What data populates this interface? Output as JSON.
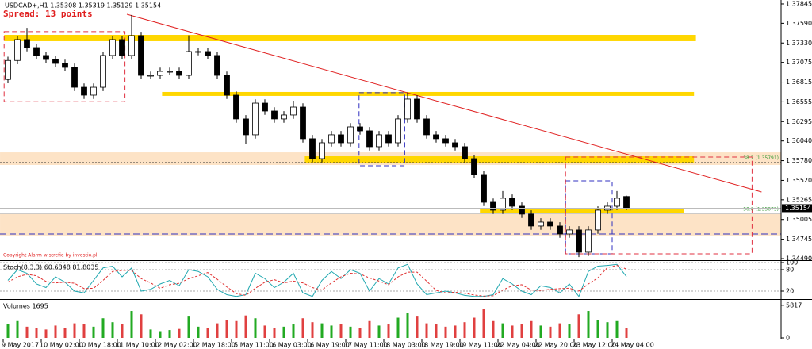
{
  "chart_data": [
    {
      "type": "candlestick",
      "title": "USDCAD+,H1  1.35308 1.35319 1.35129 1.35154",
      "spread": "Spread: 13 points",
      "footer": "Copyright Alarm w strefie by investio.pl",
      "categories": [
        "9 May 2017",
        null,
        null,
        null,
        "10 May 02:00",
        null,
        null,
        null,
        "10 May 18:00",
        null,
        null,
        null,
        "11 May 10:00",
        null,
        null,
        null,
        "12 May 02:00",
        null,
        null,
        null,
        "12 May 18:00",
        null,
        null,
        null,
        "15 May 11:00",
        null,
        null,
        null,
        "16 May 03:00",
        null,
        null,
        null,
        "16 May 19:00",
        null,
        null,
        null,
        "17 May 11:00",
        null,
        null,
        null,
        "18 May 03:00",
        null,
        null,
        null,
        "18 May 19:00",
        null,
        null,
        null,
        "19 May 11:00",
        null,
        null,
        null,
        "22 May 04:00",
        null,
        null,
        null,
        "22 May 20:00",
        null,
        null,
        null,
        "23 May 12:00",
        null,
        null,
        null,
        "24 May 04:00",
        null
      ],
      "open": [
        1.3685,
        1.371,
        1.37375,
        1.3727,
        1.37166,
        1.37113,
        1.37061,
        1.37009,
        1.36747,
        1.36643,
        1.36747,
        1.37166,
        1.37375,
        1.37166,
        1.37427,
        1.36904,
        1.36904,
        1.36956,
        1.36956,
        1.36904,
        1.37218,
        1.37218,
        1.37166,
        1.36904,
        1.36643,
        1.3633,
        1.36121,
        1.36538,
        1.36434,
        1.3633,
        1.36382,
        1.36486,
        1.36069,
        1.35807,
        1.36016,
        1.36121,
        1.36016,
        1.36225,
        1.36173,
        1.35964,
        1.36121,
        1.36016,
        1.3633,
        1.36591,
        1.3633,
        1.36121,
        1.36069,
        1.36016,
        1.35964,
        1.35807,
        1.35598,
        1.35232,
        1.35128,
        1.35285,
        1.3518,
        1.35076,
        1.34919,
        1.34971,
        1.34919,
        1.34814,
        1.34867,
        1.34574,
        1.34867,
        1.35128,
        1.3518,
        1.35308
      ],
      "high": [
        1.3715,
        1.37425,
        1.3753,
        1.3732,
        1.37216,
        1.37163,
        1.37111,
        1.37059,
        1.36797,
        1.36797,
        1.37216,
        1.37425,
        1.37425,
        1.377,
        1.37477,
        1.36954,
        1.37006,
        1.37006,
        1.37006,
        1.3743,
        1.37268,
        1.37268,
        1.37216,
        1.36954,
        1.36693,
        1.3638,
        1.36588,
        1.36588,
        1.36484,
        1.36432,
        1.3657,
        1.36536,
        1.36119,
        1.36066,
        1.36171,
        1.36171,
        1.36275,
        1.36275,
        1.36223,
        1.36171,
        1.36171,
        1.3638,
        1.3668,
        1.36641,
        1.3638,
        1.36171,
        1.36119,
        1.36066,
        1.36014,
        1.35857,
        1.35648,
        1.35282,
        1.3538,
        1.35335,
        1.3523,
        1.35126,
        1.35021,
        1.35021,
        1.34969,
        1.34917,
        1.34917,
        1.34917,
        1.35178,
        1.3523,
        1.3538,
        1.35319
      ],
      "low": [
        1.368,
        1.3705,
        1.3722,
        1.37116,
        1.37063,
        1.37011,
        1.36959,
        1.36697,
        1.36593,
        1.36593,
        1.36697,
        1.37116,
        1.37116,
        1.37116,
        1.36854,
        1.36854,
        1.36854,
        1.36906,
        1.36854,
        1.36854,
        1.37168,
        1.37116,
        1.36854,
        1.36593,
        1.3628,
        1.36,
        1.36071,
        1.36384,
        1.3628,
        1.3628,
        1.36332,
        1.36019,
        1.35757,
        1.35757,
        1.35966,
        1.35966,
        1.35966,
        1.36123,
        1.35914,
        1.35914,
        1.35966,
        1.35966,
        1.3628,
        1.3628,
        1.36071,
        1.36019,
        1.35966,
        1.35914,
        1.35757,
        1.35548,
        1.35182,
        1.35078,
        1.35078,
        1.3513,
        1.35026,
        1.34869,
        1.34869,
        1.34869,
        1.34764,
        1.34764,
        1.3451,
        1.34524,
        1.34817,
        1.35078,
        1.3513,
        1.35129
      ],
      "close": [
        1.371,
        1.37375,
        1.3727,
        1.37166,
        1.37113,
        1.37061,
        1.37009,
        1.36747,
        1.36643,
        1.36747,
        1.37166,
        1.37375,
        1.37166,
        1.37427,
        1.36904,
        1.36904,
        1.36956,
        1.36956,
        1.36904,
        1.37218,
        1.37218,
        1.37166,
        1.36904,
        1.36643,
        1.3633,
        1.36121,
        1.36538,
        1.36434,
        1.3633,
        1.36382,
        1.36486,
        1.36069,
        1.35807,
        1.36016,
        1.36121,
        1.36016,
        1.36225,
        1.36173,
        1.35964,
        1.36121,
        1.36016,
        1.3633,
        1.36591,
        1.3633,
        1.36121,
        1.36069,
        1.36016,
        1.35964,
        1.35807,
        1.35598,
        1.35232,
        1.35128,
        1.35285,
        1.3518,
        1.35076,
        1.34919,
        1.34971,
        1.34919,
        1.34814,
        1.34867,
        1.34574,
        1.34867,
        1.35128,
        1.3518,
        1.35285,
        1.35154
      ],
      "ylim": [
        1.34469,
        1.37897
      ],
      "yticks": [
        1.37845,
        {
          "value": 1.3759,
          "label": "1.37590"
        },
        {
          "value": 1.3733,
          "label": "1.37330"
        },
        1.37075,
        1.36815,
        1.36555,
        1.36295,
        {
          "value": 1.3604,
          "label": "1.36040"
        },
        {
          "value": 1.3578,
          "label": "1.35780"
        },
        {
          "value": 1.3552,
          "label": "1.35520"
        },
        1.35265,
        {
          "value": 1.35005,
          "label": "1.35005"
        },
        1.34745,
        {
          "value": 1.3449,
          "label": "1.34490"
        }
      ],
      "up_color": "#ffffff",
      "down_color": "#000000",
      "annotations": [
        {
          "kind": "band",
          "price": [
            1.3589,
            1.35723
          ],
          "span": [
            -0.83,
            81.25
          ],
          "color": "#fde3c6"
        },
        {
          "kind": "band",
          "price": [
            1.35076,
            1.34794
          ],
          "span": [
            -0.83,
            81.25
          ],
          "color": "#fde3c6"
        },
        {
          "kind": "band",
          "price": [
            1.37437,
            1.37354
          ],
          "span": [
            -0.4,
            72.3
          ],
          "color": "#ffd700"
        },
        {
          "kind": "band",
          "price": [
            1.36685,
            1.36633
          ],
          "span": [
            16.2,
            72.1
          ],
          "color": "#ffd700"
        },
        {
          "kind": "band",
          "price": [
            1.35838,
            1.35755
          ],
          "span": [
            31.2,
            72.1
          ],
          "color": "#ffd700"
        },
        {
          "kind": "band",
          "price": [
            1.35138,
            1.35086
          ],
          "span": [
            49.6,
            71
          ],
          "color": "#ffd700"
        },
        {
          "kind": "hline",
          "price": 1.35755,
          "color": "#333333",
          "dash": "2 2"
        },
        {
          "kind": "hline",
          "price": 1.35086,
          "color": "#999999",
          "dash": "0"
        },
        {
          "kind": "hline",
          "price": 1.34814,
          "color": "#3030c0",
          "dash": "8 4"
        },
        {
          "kind": "box",
          "price": [
            1.3748,
            1.36557
          ],
          "span": [
            -0.4,
            12.3
          ],
          "color": "#e03040"
        },
        {
          "kind": "box",
          "price": [
            1.36675,
            1.35713
          ],
          "span": [
            36.9,
            41.7
          ],
          "color": "#3030c0"
        },
        {
          "kind": "box",
          "price": [
            1.35514,
            1.34553
          ],
          "span": [
            58.6,
            63.5
          ],
          "color": "#3030c0"
        },
        {
          "kind": "box",
          "price": [
            1.35828,
            1.34553
          ],
          "span": [
            58.6,
            78.2
          ],
          "color": "#e03040"
        },
        {
          "kind": "line",
          "from": [
            12.5,
            1.37709
          ],
          "to": [
            79.2,
            1.35368
          ],
          "color": "#e02020"
        },
        {
          "kind": "label",
          "text": "38.2 (1.35791)",
          "price": 1.3581,
          "at": 81,
          "color": "#3a9a3a"
        },
        {
          "kind": "label",
          "text": "50.0 (1.35079)",
          "price": 1.35138,
          "at": 81,
          "color": "#3a9a3a"
        }
      ]
    },
    {
      "type": "line",
      "title": "Stoch(8,3,3) 60.6848 81.8035",
      "series": [
        {
          "color": "#20a8b0",
          "dash": "0",
          "values": [
            50,
            80,
            70,
            40,
            30,
            60,
            45,
            20,
            15,
            50,
            85,
            90,
            60,
            85,
            20,
            25,
            40,
            50,
            35,
            80,
            75,
            60,
            25,
            10,
            5,
            10,
            70,
            55,
            30,
            45,
            70,
            15,
            5,
            50,
            75,
            55,
            80,
            70,
            20,
            55,
            40,
            85,
            95,
            40,
            10,
            15,
            20,
            15,
            8,
            5,
            5,
            10,
            55,
            40,
            20,
            10,
            35,
            30,
            15,
            40,
            5,
            75,
            90,
            92,
            95,
            60.6848
          ]
        },
        {
          "color": "#e03030",
          "dash": "3 2",
          "values": [
            45,
            60,
            67,
            63,
            47,
            43,
            45,
            42,
            27,
            28,
            50,
            75,
            78,
            78,
            55,
            43,
            28,
            38,
            42,
            55,
            63,
            72,
            53,
            32,
            13,
            8,
            28,
            45,
            52,
            43,
            48,
            43,
            30,
            23,
            43,
            60,
            70,
            68,
            57,
            48,
            38,
            60,
            73,
            73,
            48,
            22,
            15,
            17,
            14,
            9,
            6,
            7,
            23,
            35,
            38,
            23,
            22,
            25,
            27,
            28,
            20,
            40,
            57,
            86,
            92,
            81.8035
          ]
        }
      ],
      "ylim": [
        0,
        100
      ],
      "yticks": [
        20,
        80,
        100
      ]
    },
    {
      "type": "bar",
      "title": "Volumes 1695",
      "values": [
        2500,
        3000,
        2000,
        1800,
        1500,
        2200,
        1700,
        2600,
        2400,
        2000,
        3500,
        2800,
        2400,
        4800,
        4200,
        1500,
        1200,
        1400,
        1600,
        3800,
        2000,
        1800,
        2600,
        3200,
        3000,
        4000,
        3500,
        2200,
        1800,
        2000,
        2400,
        3500,
        2800,
        2600,
        2200,
        2400,
        2000,
        1800,
        3000,
        2200,
        2400,
        3600,
        4500,
        3800,
        2600,
        2400,
        2000,
        2200,
        2800,
        3600,
        5200,
        3000,
        2600,
        2200,
        2400,
        3000,
        2200,
        2000,
        2600,
        2400,
        4200,
        4800,
        3200,
        2800,
        3000,
        1695
      ],
      "ylim": [
        0,
        6500
      ],
      "yticks": [
        0,
        5817
      ],
      "up_color": "#22aa22",
      "down_color": "#e04040"
    }
  ]
}
